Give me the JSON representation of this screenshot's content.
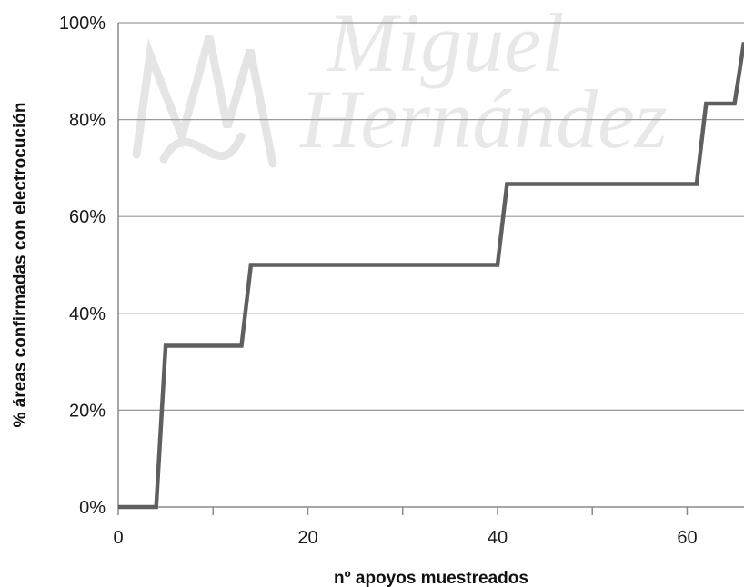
{
  "chart_data": {
    "type": "line",
    "xlabel": "nº apoyos muestreados",
    "ylabel": "% áreas confirmadas con electrocución",
    "xlim": [
      0,
      66
    ],
    "ylim": [
      0,
      100
    ],
    "x_ticks": [
      0,
      20,
      40,
      60
    ],
    "x_tick_labels": [
      "0",
      "20",
      "40",
      "60"
    ],
    "x_minor_ticks": [
      10,
      30,
      50
    ],
    "y_ticks": [
      0,
      20,
      40,
      60,
      80,
      100
    ],
    "y_tick_labels": [
      "0%",
      "20%",
      "40%",
      "60%",
      "80%",
      "100%"
    ],
    "grid": "horizontal",
    "legend": "none",
    "line_color": "#5f5f5f",
    "grid_color": "#9a9a9a",
    "series": [
      {
        "x": [
          0,
          4,
          5,
          13,
          14,
          40,
          41,
          61,
          62,
          65,
          66
        ],
        "values": [
          0,
          0,
          33.3,
          33.3,
          50,
          50,
          66.7,
          66.7,
          83.3,
          83.3,
          96
        ]
      }
    ]
  },
  "watermark": {
    "line1": "Miguel",
    "line2": "Hernández"
  }
}
